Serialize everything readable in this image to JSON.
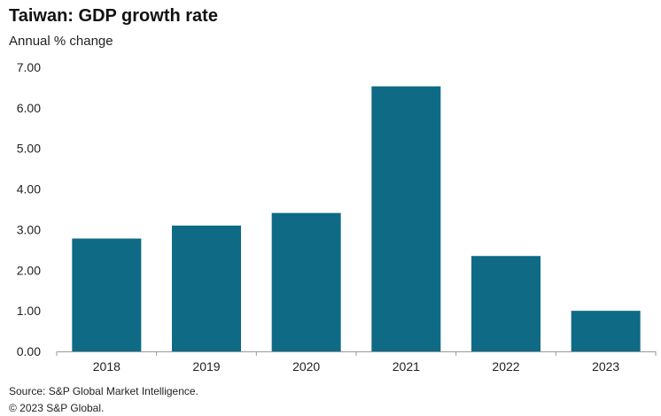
{
  "header": {
    "title": "Taiwan: GDP growth rate",
    "subtitle": "Annual % change"
  },
  "footer": {
    "source": "Source: S&P Global Market Intelligence.",
    "copyright": "© 2023 S&P Global."
  },
  "colors": {
    "bar": "#0f6a86",
    "axis": "#9a9a9a"
  },
  "chart_data": {
    "type": "bar",
    "title": "Taiwan: GDP growth rate",
    "subtitle": "Annual % change",
    "categories": [
      "2018",
      "2019",
      "2020",
      "2021",
      "2022",
      "2023"
    ],
    "values": [
      2.78,
      3.1,
      3.41,
      6.53,
      2.35,
      1.0
    ],
    "ylim": [
      0,
      7
    ],
    "yticks": [
      "0.00",
      "1.00",
      "2.00",
      "3.00",
      "4.00",
      "5.00",
      "6.00",
      "7.00"
    ],
    "grid": false,
    "legend": "none"
  }
}
